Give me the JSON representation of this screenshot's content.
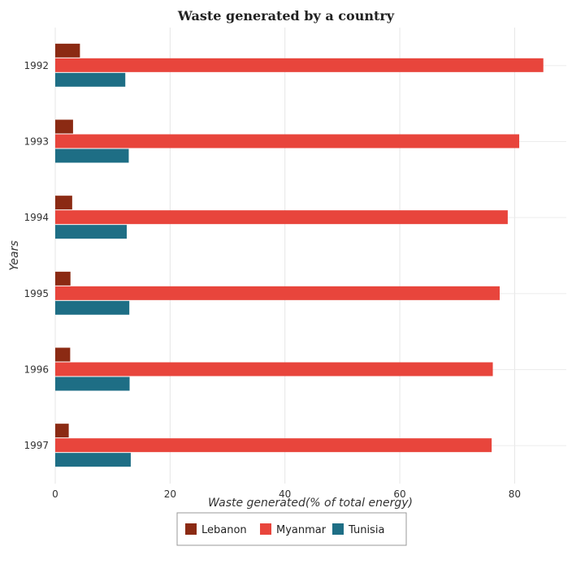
{
  "chart_data": {
    "type": "bar",
    "orientation": "horizontal",
    "title": "Waste generated by a country",
    "xlabel": "Waste generated(% of total energy)",
    "ylabel": "Years",
    "categories": [
      "1992",
      "1993",
      "1994",
      "1995",
      "1996",
      "1997"
    ],
    "series": [
      {
        "name": "Lebanon",
        "color": "#8B2A13",
        "values": [
          4.3,
          3.1,
          2.95,
          2.65,
          2.6,
          2.35
        ]
      },
      {
        "name": "Myanmar",
        "color": "#E8453C",
        "values": [
          85.0,
          80.8,
          78.8,
          77.4,
          76.2,
          76.0
        ]
      },
      {
        "name": "Tunisia",
        "color": "#1E6E85",
        "values": [
          12.2,
          12.8,
          12.45,
          12.9,
          12.95,
          13.15
        ]
      }
    ],
    "xlim": [
      0,
      89
    ],
    "xticks": [
      0,
      20,
      40,
      60,
      80
    ],
    "grid": true,
    "legend_position": "bottom-center"
  }
}
